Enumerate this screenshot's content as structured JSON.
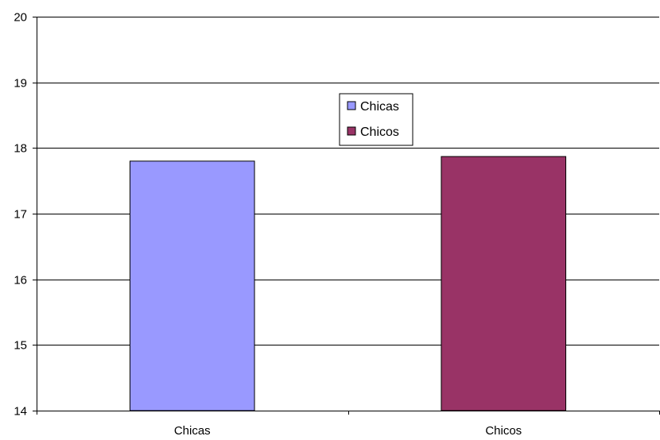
{
  "chart_data": {
    "type": "bar",
    "categories": [
      "Chicas",
      "Chicos"
    ],
    "values": [
      17.8,
      17.87
    ],
    "colors": [
      "#9999ff",
      "#993366"
    ],
    "ylim": [
      14,
      20
    ],
    "yticks": [
      "14",
      "15",
      "16",
      "17",
      "18",
      "19",
      "20"
    ],
    "grid": true,
    "legend": {
      "placement": "center-top",
      "entries": [
        "Chicas",
        "Chicos"
      ]
    }
  }
}
